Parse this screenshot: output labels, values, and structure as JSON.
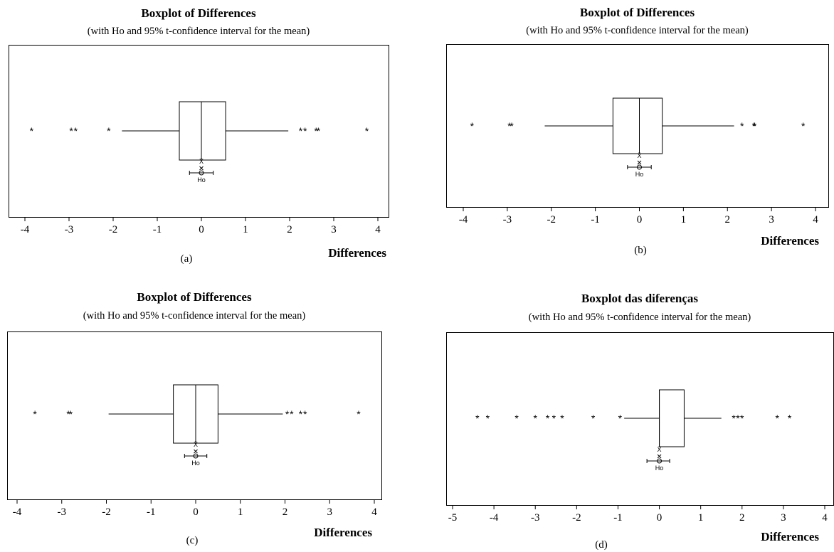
{
  "chart_data": [
    {
      "type": "boxplot",
      "panel_label": "(a)",
      "title": "Boxplot of Differences",
      "subtitle": "(with Ho and 95% t-confidence interval for the mean)",
      "xlabel": "Differences",
      "xticks": [
        -4,
        -3,
        -2,
        -1,
        0,
        1,
        2,
        3,
        4
      ],
      "xlim": [
        -4.4,
        4.2
      ],
      "box": {
        "whisker_low": -1.8,
        "q1": -0.5,
        "median": 0.0,
        "q3": 0.55,
        "whisker_high": 1.97
      },
      "outliers": [
        -3.85,
        -2.95,
        -2.85,
        -2.1,
        2.25,
        2.35,
        2.6,
        2.65,
        3.75
      ],
      "mean": 0.0,
      "ci": [
        -0.27,
        0.27
      ],
      "ho": 0.0,
      "ho_label": "Ho",
      "mean_label": "X̄"
    },
    {
      "type": "boxplot",
      "panel_label": "(b)",
      "title": "Boxplot of Differences",
      "subtitle": "(with Ho and 95% t-confidence interval for the mean)",
      "xlabel": "Differences",
      "xticks": [
        -4,
        -3,
        -2,
        -1,
        0,
        1,
        2,
        3,
        4
      ],
      "xlim": [
        -4.4,
        4.2
      ],
      "box": {
        "whisker_low": -2.15,
        "q1": -0.6,
        "median": 0.0,
        "q3": 0.52,
        "whisker_high": 2.15
      },
      "outliers": [
        -3.8,
        -2.95,
        -2.9,
        2.33,
        2.6,
        2.62,
        3.72
      ],
      "mean": 0.0,
      "ci": [
        -0.27,
        0.27
      ],
      "ho": 0.0,
      "ho_label": "Ho",
      "mean_label": "X̄"
    },
    {
      "type": "boxplot",
      "panel_label": "(c)",
      "title": "Boxplot of Differences",
      "subtitle": "(with Ho and 95% t-confidence interval for the mean)",
      "xlabel": "Differences",
      "xticks": [
        -4,
        -3,
        -2,
        -1,
        0,
        1,
        2,
        3,
        4
      ],
      "xlim": [
        -4.1,
        4.15
      ],
      "box": {
        "whisker_low": -1.95,
        "q1": -0.5,
        "median": 0.0,
        "q3": 0.5,
        "whisker_high": 1.95
      },
      "outliers": [
        -3.6,
        -2.85,
        -2.8,
        2.05,
        2.15,
        2.35,
        2.45,
        3.65
      ],
      "mean": 0.0,
      "ci": [
        -0.25,
        0.25
      ],
      "ho": 0.0,
      "ho_label": "Ho",
      "mean_label": "X̄"
    },
    {
      "type": "boxplot",
      "panel_label": "(d)",
      "title": "Boxplot das diferenças",
      "subtitle": "(with Ho and 95% t-confidence interval for the mean)",
      "xlabel": "Differences",
      "xticks": [
        -5,
        -4,
        -3,
        -2,
        -1,
        0,
        1,
        2,
        3,
        4
      ],
      "xlim": [
        -5.2,
        4.3
      ],
      "box": {
        "whisker_low": -0.85,
        "q1": 0.0,
        "median": 0.0,
        "q3": 0.6,
        "whisker_high": 1.5
      },
      "outliers": [
        -4.4,
        -4.15,
        -3.45,
        -3.0,
        -2.7,
        -2.55,
        -2.35,
        -1.6,
        -0.95,
        1.8,
        1.9,
        2.0,
        2.85,
        3.15
      ],
      "mean": 0.0,
      "ci": [
        -0.3,
        0.25
      ],
      "ho": 0.0,
      "ho_label": "Ho",
      "mean_label": "X̄"
    }
  ]
}
